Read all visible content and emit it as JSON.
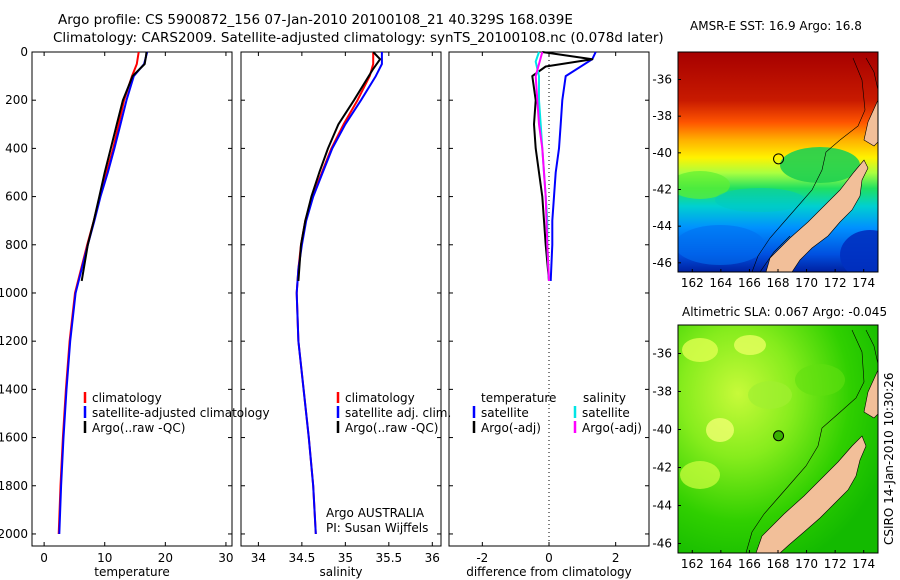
{
  "header": {
    "line1": "Argo profile: CS 5900872_156 07-Jan-2010 20100108_21 40.329S 168.039E",
    "line2": "Climatology: CARS2009. Satellite-adjusted climatology: synTS_20100108.nc (0.078d later)"
  },
  "colors": {
    "climatology": "#ff0000",
    "satellite": "#0000ff",
    "argo": "#000000",
    "sal_satellite": "#00e5e5",
    "sal_argo": "#ff00ff",
    "land": "#f2bf99"
  },
  "chart_data": [
    {
      "id": "temperature",
      "type": "line",
      "xlabel": "temperature",
      "ylabel": "",
      "xlim": [
        -2,
        31
      ],
      "ylim": [
        0,
        2050
      ],
      "xticks": [
        0,
        10,
        20,
        30
      ],
      "yticks": [
        0,
        200,
        400,
        600,
        800,
        1000,
        1200,
        1400,
        1600,
        1800,
        2000
      ],
      "series": [
        {
          "name": "climatology",
          "color": "#ff0000",
          "x": [
            15.6,
            15.3,
            14.5,
            13.2,
            12.3,
            11.4,
            10.3,
            9.2,
            8.2,
            7.1,
            6.1,
            5.1,
            4.2,
            3.6,
            3.1,
            2.7,
            2.4
          ],
          "y": [
            0,
            50,
            100,
            200,
            300,
            400,
            500,
            600,
            700,
            800,
            900,
            1000,
            1200,
            1400,
            1600,
            1800,
            2000
          ]
        },
        {
          "name": "satellite-adjusted climatology",
          "color": "#0000ff",
          "x": [
            17.0,
            16.5,
            14.8,
            13.6,
            12.6,
            11.6,
            10.5,
            9.3,
            8.3,
            7.2,
            6.2,
            5.2,
            4.3,
            3.7,
            3.2,
            2.8,
            2.5
          ],
          "y": [
            0,
            50,
            100,
            200,
            300,
            400,
            500,
            600,
            700,
            800,
            900,
            1000,
            1200,
            1400,
            1600,
            1800,
            2000
          ]
        },
        {
          "name": "Argo(..raw -QC)",
          "color": "#000000",
          "x": [
            16.9,
            16.8,
            16.6,
            14.6,
            13.0,
            12.0,
            11.0,
            10.0,
            9.1,
            8.2,
            7.2,
            6.2
          ],
          "y": [
            0,
            20,
            50,
            100,
            200,
            300,
            400,
            500,
            600,
            700,
            800,
            950
          ]
        }
      ],
      "legend": [
        "climatology",
        "satellite-adjusted climatology",
        "Argo(..raw -QC)"
      ]
    },
    {
      "id": "salinity",
      "type": "line",
      "xlabel": "salinity",
      "xlim": [
        33.8,
        36.1
      ],
      "ylim": [
        0,
        2050
      ],
      "xticks": [
        34,
        34.5,
        35,
        35.5,
        36
      ],
      "series": [
        {
          "name": "climatology",
          "color": "#ff0000",
          "x": [
            35.32,
            35.32,
            35.28,
            35.14,
            34.98,
            34.84,
            34.73,
            34.62,
            34.54,
            34.49,
            34.46,
            34.44,
            34.46,
            34.52,
            34.58,
            34.63,
            34.66
          ],
          "y": [
            0,
            50,
            100,
            200,
            300,
            400,
            500,
            600,
            700,
            800,
            900,
            1000,
            1200,
            1400,
            1600,
            1800,
            2000
          ]
        },
        {
          "name": "satellite adj. clim.",
          "color": "#0000ff",
          "x": [
            35.42,
            35.42,
            35.35,
            35.18,
            35.0,
            34.85,
            34.74,
            34.63,
            34.55,
            34.5,
            34.46,
            34.44,
            34.46,
            34.52,
            34.58,
            34.63,
            34.66
          ],
          "y": [
            0,
            50,
            100,
            200,
            300,
            400,
            500,
            600,
            700,
            800,
            900,
            1000,
            1200,
            1400,
            1600,
            1800,
            2000
          ]
        },
        {
          "name": "Argo(..raw -QC)",
          "color": "#000000",
          "x": [
            35.32,
            35.4,
            35.32,
            35.1,
            34.92,
            34.8,
            34.7,
            34.61,
            34.54,
            34.49,
            34.46
          ],
          "y": [
            0,
            30,
            70,
            200,
            300,
            400,
            500,
            600,
            700,
            800,
            950
          ]
        }
      ],
      "legend": [
        "climatology",
        "satellite adj. clim.",
        "Argo(..raw -QC)"
      ],
      "annotation": [
        "Argo AUSTRALIA",
        "PI: Susan Wijffels"
      ]
    },
    {
      "id": "difference",
      "type": "line",
      "xlabel": "difference from climatology",
      "xlim": [
        -3,
        3
      ],
      "ylim": [
        0,
        2050
      ],
      "xticks": [
        -2,
        0,
        2
      ],
      "series": [
        {
          "name": "temperature satellite",
          "color": "#0000ff",
          "x": [
            1.4,
            1.3,
            0.5,
            0.4,
            0.35,
            0.3,
            0.2,
            0.15,
            0.1,
            0.1,
            0.05
          ],
          "y": [
            0,
            30,
            100,
            200,
            300,
            400,
            500,
            600,
            700,
            800,
            950
          ]
        },
        {
          "name": "temperature Argo(-adj)",
          "color": "#000000",
          "x": [
            -0.2,
            1.3,
            -0.1,
            -0.5,
            -0.4,
            -0.45,
            -0.4,
            -0.3,
            -0.2,
            -0.15,
            -0.1,
            0.0
          ],
          "y": [
            0,
            30,
            60,
            100,
            200,
            300,
            400,
            500,
            600,
            700,
            800,
            950
          ]
        },
        {
          "name": "salinity satellite",
          "color": "#00e5e5",
          "x": [
            -0.3,
            -0.4,
            -0.3,
            -0.3,
            -0.25,
            -0.2,
            -0.15,
            -0.1,
            -0.05,
            -0.05,
            0.0
          ],
          "y": [
            0,
            40,
            100,
            200,
            300,
            400,
            500,
            600,
            700,
            800,
            950
          ]
        },
        {
          "name": "salinity Argo(-adj)",
          "color": "#ff00ff",
          "x": [
            -0.2,
            -0.4,
            -0.35,
            -0.3,
            -0.2,
            -0.15,
            -0.1,
            -0.05,
            0.0
          ],
          "y": [
            0,
            100,
            200,
            300,
            400,
            500,
            600,
            800,
            950
          ]
        }
      ],
      "legend_headers": [
        "temperature",
        "salinity"
      ],
      "legend": [
        "satellite",
        "Argo(-adj)",
        "satellite",
        "Argo(-adj)"
      ]
    },
    {
      "id": "sst_map",
      "type": "heatmap",
      "title": "AMSR-E SST: 16.9 Argo: 16.8",
      "xlim": [
        161,
        175
      ],
      "ylim": [
        -46.5,
        -34.5
      ],
      "xticks": [
        162,
        164,
        166,
        168,
        170,
        172,
        174
      ],
      "xtick_labels": [
        "162",
        "164",
        "166",
        "168",
        "170",
        "172",
        "174"
      ],
      "yticks": [
        -36,
        -38,
        -40,
        -42,
        -44,
        -46
      ],
      "ytick_labels": [
        "-36",
        "-38",
        "-40",
        "-42",
        "-44",
        "-46"
      ],
      "marker": {
        "lon": 168.039,
        "lat": -40.329
      }
    },
    {
      "id": "sla_map",
      "type": "heatmap",
      "title": "Altimetric SLA: 0.067 Argo: -0.045",
      "xlim": [
        161,
        175
      ],
      "ylim": [
        -46.5,
        -34.5
      ],
      "xticks": [
        162,
        164,
        166,
        168,
        170,
        172,
        174
      ],
      "xtick_labels": [
        "162",
        "164",
        "166",
        "168",
        "170",
        "172",
        "174"
      ],
      "yticks": [
        -36,
        -38,
        -40,
        -42,
        -44,
        -46
      ],
      "ytick_labels": [
        "-36",
        "-38",
        "-40",
        "-42",
        "-44",
        "-46"
      ],
      "marker": {
        "lon": 168.039,
        "lat": -40.329
      },
      "side_label": "CSIRO 14-Jan-2010 10:30:26"
    }
  ]
}
